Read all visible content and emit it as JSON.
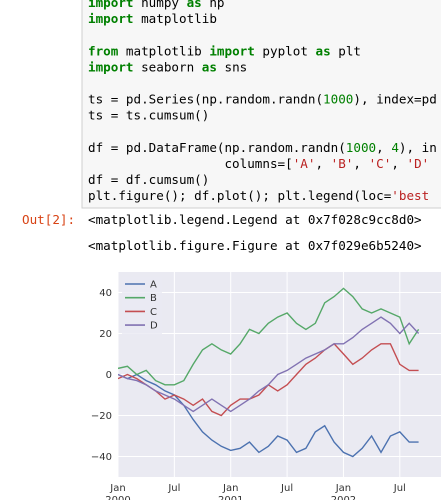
{
  "code": {
    "lines": [
      [
        {
          "text": "import",
          "style": "kw"
        },
        {
          "text": " numpy "
        },
        {
          "text": "as",
          "style": "kw"
        },
        {
          "text": " np"
        }
      ],
      [
        {
          "text": "import",
          "style": "kw"
        },
        {
          "text": " matplotlib"
        }
      ],
      [],
      [
        {
          "text": "from",
          "style": "kw"
        },
        {
          "text": " matplotlib "
        },
        {
          "text": "import",
          "style": "kw"
        },
        {
          "text": " pyplot "
        },
        {
          "text": "as",
          "style": "kw"
        },
        {
          "text": " plt"
        }
      ],
      [
        {
          "text": "import",
          "style": "kw"
        },
        {
          "text": " seaborn "
        },
        {
          "text": "as",
          "style": "kw"
        },
        {
          "text": " sns"
        }
      ],
      [],
      [
        {
          "text": "ts = pd.Series(np.random.randn("
        },
        {
          "text": "1000",
          "style": "num"
        },
        {
          "text": "), index=pd"
        }
      ],
      [
        {
          "text": "ts = ts.cumsum()"
        }
      ],
      [],
      [
        {
          "text": "df = pd.DataFrame(np.random.randn("
        },
        {
          "text": "1000",
          "style": "num"
        },
        {
          "text": ", "
        },
        {
          "text": "4",
          "style": "num"
        },
        {
          "text": "), in"
        }
      ],
      [
        {
          "text": "                  columns=["
        },
        {
          "text": "'A'",
          "style": "str"
        },
        {
          "text": ", "
        },
        {
          "text": "'B'",
          "style": "str"
        },
        {
          "text": ", "
        },
        {
          "text": "'C'",
          "style": "str"
        },
        {
          "text": ", "
        },
        {
          "text": "'D'",
          "style": "str"
        }
      ],
      [
        {
          "text": "df = df.cumsum()"
        }
      ],
      [
        {
          "text": "plt.figure(); df.plot(); plt.legend(loc="
        },
        {
          "text": "'best",
          "style": "str"
        }
      ]
    ]
  },
  "output": {
    "prompt": "Out[2]:",
    "lines": [
      "<matplotlib.legend.Legend at 0x7f028c9cc8d0>",
      "<matplotlib.figure.Figure at 0x7f029e6b5240>"
    ]
  },
  "chart_data": {
    "type": "line",
    "x": [
      "2000-01",
      "2000-02",
      "2000-03",
      "2000-04",
      "2000-05",
      "2000-06",
      "2000-07",
      "2000-08",
      "2000-09",
      "2000-10",
      "2000-11",
      "2000-12",
      "2001-01",
      "2001-02",
      "2001-03",
      "2001-04",
      "2001-05",
      "2001-06",
      "2001-07",
      "2001-08",
      "2001-09",
      "2001-10",
      "2001-11",
      "2001-12",
      "2002-01",
      "2002-02",
      "2002-03",
      "2002-04",
      "2002-05",
      "2002-06",
      "2002-07",
      "2002-08",
      "2002-09"
    ],
    "series": [
      {
        "name": "A",
        "color": "#4c72b0",
        "values": [
          0,
          -2,
          0,
          -3,
          -5,
          -8,
          -10,
          -15,
          -22,
          -28,
          -32,
          -35,
          -37,
          -36,
          -33,
          -38,
          -35,
          -30,
          -32,
          -38,
          -36,
          -28,
          -25,
          -33,
          -38,
          -40,
          -36,
          -30,
          -38,
          -30,
          -28,
          -33,
          -33
        ]
      },
      {
        "name": "B",
        "color": "#55a868",
        "values": [
          3,
          4,
          0,
          2,
          -3,
          -5,
          -5,
          -3,
          5,
          12,
          15,
          12,
          10,
          15,
          22,
          20,
          25,
          28,
          30,
          25,
          22,
          25,
          35,
          38,
          42,
          38,
          32,
          30,
          32,
          30,
          28,
          15,
          22
        ]
      },
      {
        "name": "C",
        "color": "#c44e52",
        "values": [
          -2,
          0,
          -2,
          -5,
          -8,
          -12,
          -10,
          -12,
          -15,
          -12,
          -18,
          -20,
          -15,
          -12,
          -12,
          -10,
          -5,
          -8,
          -5,
          0,
          5,
          8,
          12,
          15,
          10,
          5,
          8,
          12,
          15,
          15,
          5,
          2,
          2
        ]
      },
      {
        "name": "D",
        "color": "#8172b2",
        "values": [
          0,
          -2,
          -3,
          -5,
          -8,
          -10,
          -12,
          -15,
          -18,
          -15,
          -12,
          -15,
          -18,
          -15,
          -12,
          -8,
          -5,
          0,
          2,
          5,
          8,
          10,
          12,
          15,
          15,
          18,
          22,
          25,
          28,
          25,
          20,
          25,
          20
        ]
      }
    ],
    "xlim": [
      "2000-01",
      "2002-10"
    ],
    "xticks": [
      {
        "value": "2000-01",
        "label": "Jan",
        "year": "2000"
      },
      {
        "value": "2000-07",
        "label": "Jul"
      },
      {
        "value": "2001-01",
        "label": "Jan",
        "year": "2001"
      },
      {
        "value": "2001-07",
        "label": "Jul"
      },
      {
        "value": "2002-01",
        "label": "Jan",
        "year": "2002"
      },
      {
        "value": "2002-07",
        "label": "Jul"
      }
    ],
    "ylim": [
      -50,
      50
    ],
    "yticks": [
      {
        "value": -40,
        "label": "−40"
      },
      {
        "value": -20,
        "label": "−20"
      },
      0,
      20,
      40
    ],
    "grid": true,
    "legend": "upper left",
    "background": "#eaeaf2"
  }
}
